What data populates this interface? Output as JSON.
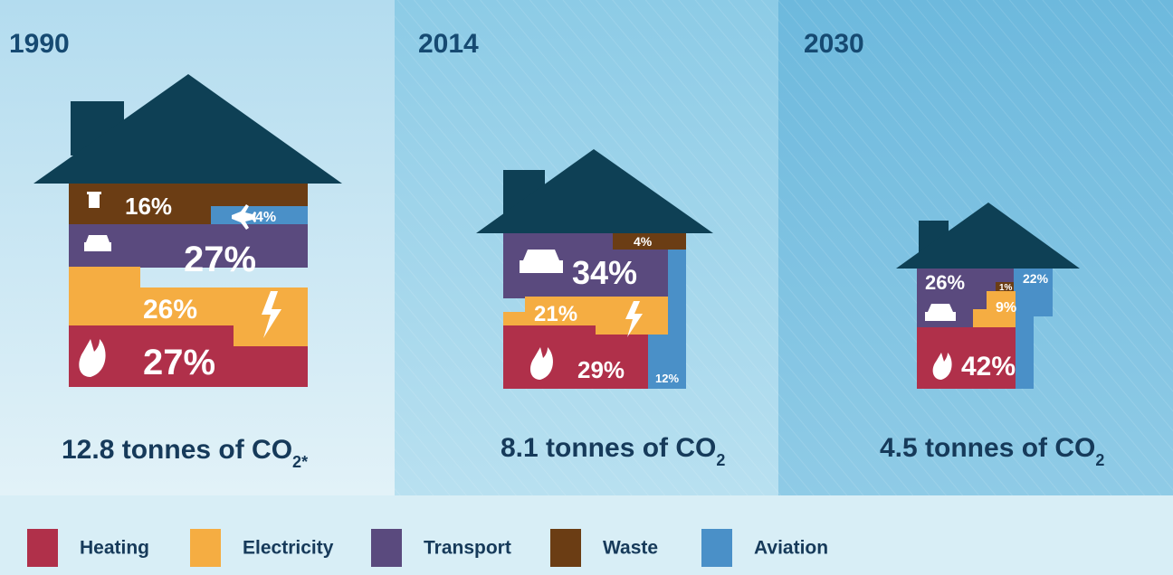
{
  "panels": [
    {
      "year": "1990",
      "segments": {
        "waste": "16%",
        "aviation": "4%",
        "transport": "27%",
        "electricity": "26%",
        "heating": "27%"
      },
      "total": {
        "text": "12.8 tonnes of CO",
        "sub": "2",
        "note": "*"
      }
    },
    {
      "year": "2014",
      "segments": {
        "waste": "4%",
        "transport": "34%",
        "electricity": "21%",
        "heating": "29%",
        "aviation": "12%"
      },
      "total": {
        "text": "8.1 tonnes of CO",
        "sub": "2"
      }
    },
    {
      "year": "2030",
      "segments": {
        "transport": "26%",
        "waste": "1%",
        "electricity": "9%",
        "aviation": "22%",
        "heating": "42%"
      },
      "total": {
        "text": "4.5 tonnes of CO",
        "sub": "2"
      }
    }
  ],
  "legend": [
    "Heating",
    "Electricity",
    "Transport",
    "Waste",
    "Aviation"
  ]
}
